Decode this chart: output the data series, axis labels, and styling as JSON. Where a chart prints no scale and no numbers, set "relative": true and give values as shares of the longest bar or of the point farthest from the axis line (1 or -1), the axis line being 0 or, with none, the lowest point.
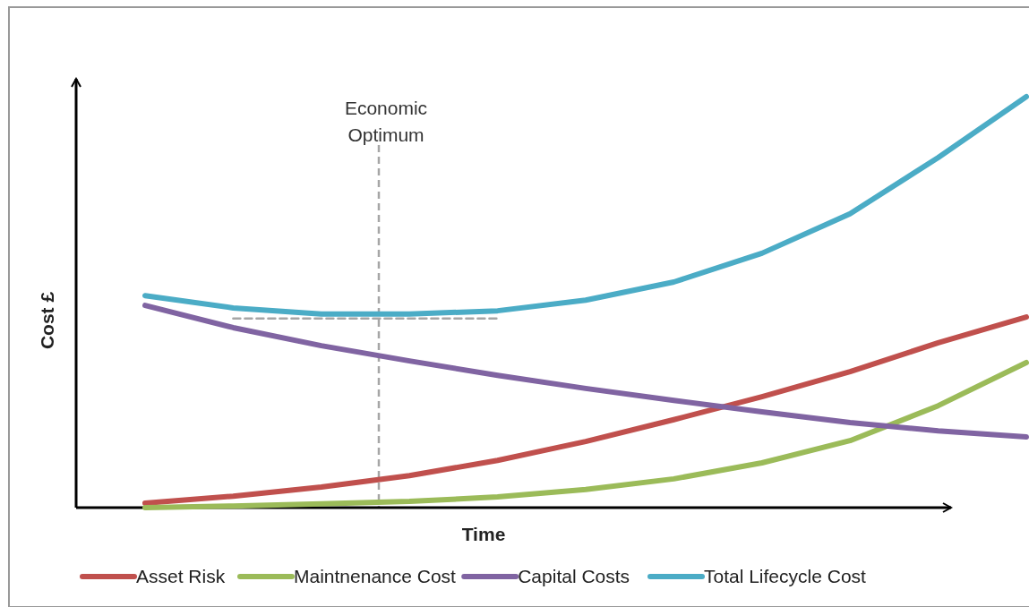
{
  "chart_data": {
    "type": "line",
    "xlabel": "Time",
    "ylabel": "Cost £",
    "relative": true,
    "legend": "bottom",
    "categories": [
      null,
      null,
      null,
      null,
      null,
      null,
      null,
      null,
      null,
      null,
      null
    ],
    "series": [
      {
        "name": "Asset Risk",
        "color": "#c0504d",
        "values": [
          0.011,
          0.028,
          0.05,
          0.078,
          0.115,
          0.161,
          0.214,
          0.27,
          0.331,
          0.401,
          0.464
        ]
      },
      {
        "name": "Maintnenance Cost",
        "color": "#9bbb59",
        "values": [
          0,
          0.004,
          0.009,
          0.015,
          0.026,
          0.044,
          0.07,
          0.109,
          0.163,
          0.248,
          0.353
        ]
      },
      {
        "name": "Capital Costs",
        "color": "#8064a2",
        "values": [
          0.492,
          0.438,
          0.394,
          0.357,
          0.322,
          0.29,
          0.261,
          0.233,
          0.207,
          0.187,
          0.172
        ]
      },
      {
        "name": "Total Lifecycle Cost",
        "color": "#4bacc6",
        "values": [
          0.516,
          0.486,
          0.471,
          0.471,
          0.479,
          0.505,
          0.549,
          0.619,
          0.715,
          0.852,
          1
        ]
      },
      {
        "color": "#a6a6a6",
        "line_style": "dashed",
        "values": [
          null,
          0.46,
          0.46,
          0.46,
          0.46,
          null,
          null,
          null,
          null,
          null,
          null
        ]
      }
    ],
    "annotations": [
      "Economic Optimum"
    ]
  }
}
